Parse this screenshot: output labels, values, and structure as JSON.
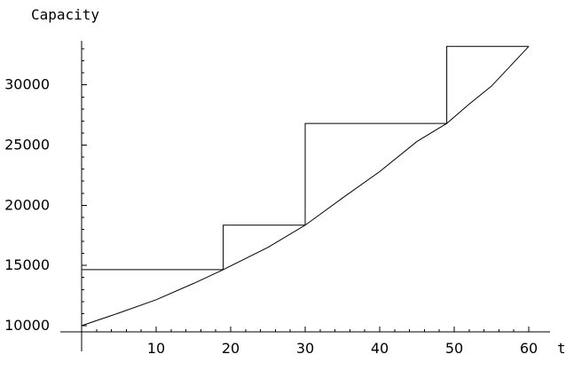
{
  "chart_data": {
    "type": "line",
    "xlabel": "t",
    "ylabel": "Capacity",
    "xlim": [
      0,
      60
    ],
    "ylim": [
      10000,
      33000
    ],
    "xticks": [
      10,
      20,
      30,
      40,
      50,
      60
    ],
    "yticks": [
      10000,
      15000,
      20000,
      25000,
      30000
    ],
    "grid": false,
    "series": [
      {
        "x": [
          0,
          5,
          10,
          15,
          19,
          25,
          30,
          35,
          40,
          45,
          49,
          52,
          55,
          60
        ],
        "y": [
          10000,
          11050,
          12150,
          13500,
          14650,
          16500,
          18350,
          20600,
          22800,
          25300,
          26800,
          28400,
          29900,
          33200
        ]
      },
      {
        "x": [
          0,
          19,
          19,
          30,
          30,
          49,
          49,
          60
        ],
        "y": [
          14650,
          14650,
          18350,
          18350,
          26800,
          26800,
          33200,
          33200
        ]
      }
    ]
  }
}
